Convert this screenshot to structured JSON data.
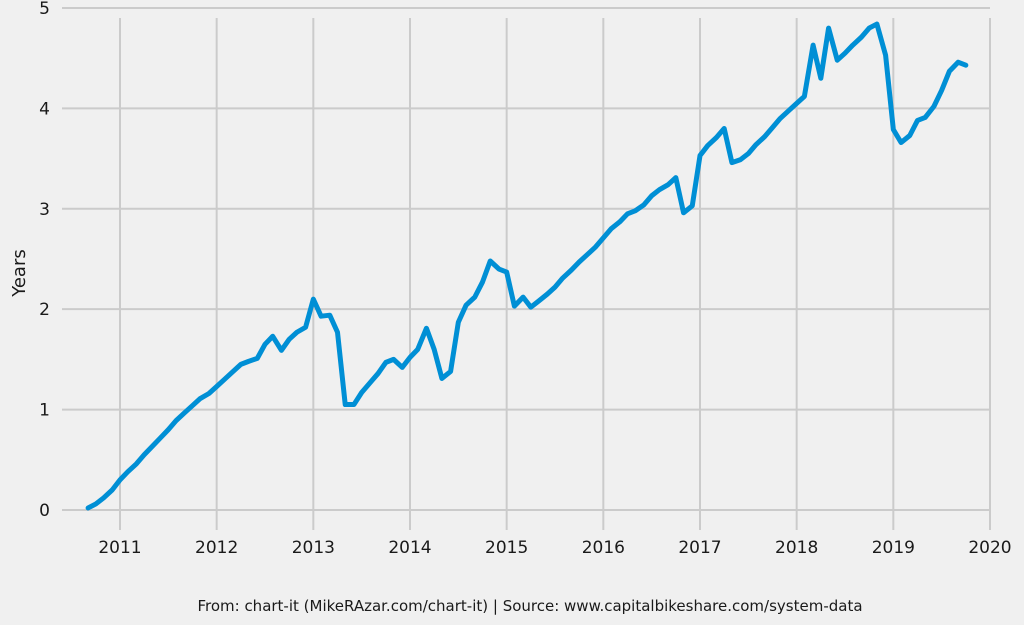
{
  "chart_data": {
    "type": "line",
    "title": "",
    "xlabel": "",
    "ylabel": "Years",
    "xlim": [
      2010.4,
      2020
    ],
    "ylim": [
      -0.1,
      5
    ],
    "grid": true,
    "x_ticks": [
      "2011",
      "2012",
      "2013",
      "2014",
      "2015",
      "2016",
      "2017",
      "2018",
      "2019",
      "2020"
    ],
    "y_ticks": [
      "0",
      "1",
      "2",
      "3",
      "4",
      "5"
    ],
    "series": [
      {
        "color": "#008fd5",
        "points": [
          [
            2010.67,
            0.02
          ],
          [
            2010.75,
            0.06
          ],
          [
            2010.83,
            0.12
          ],
          [
            2010.92,
            0.2
          ],
          [
            2011.0,
            0.3
          ],
          [
            2011.08,
            0.38
          ],
          [
            2011.17,
            0.46
          ],
          [
            2011.25,
            0.55
          ],
          [
            2011.33,
            0.63
          ],
          [
            2011.42,
            0.72
          ],
          [
            2011.5,
            0.8
          ],
          [
            2011.58,
            0.89
          ],
          [
            2011.67,
            0.97
          ],
          [
            2011.75,
            1.04
          ],
          [
            2011.83,
            1.11
          ],
          [
            2011.92,
            1.16
          ],
          [
            2012.0,
            1.23
          ],
          [
            2012.08,
            1.3
          ],
          [
            2012.17,
            1.38
          ],
          [
            2012.25,
            1.45
          ],
          [
            2012.33,
            1.48
          ],
          [
            2012.42,
            1.51
          ],
          [
            2012.5,
            1.65
          ],
          [
            2012.58,
            1.73
          ],
          [
            2012.67,
            1.59
          ],
          [
            2012.75,
            1.7
          ],
          [
            2012.83,
            1.77
          ],
          [
            2012.92,
            1.82
          ],
          [
            2013.0,
            2.1
          ],
          [
            2013.08,
            1.93
          ],
          [
            2013.17,
            1.94
          ],
          [
            2013.25,
            1.77
          ],
          [
            2013.33,
            1.05
          ],
          [
            2013.42,
            1.05
          ],
          [
            2013.5,
            1.17
          ],
          [
            2013.58,
            1.26
          ],
          [
            2013.67,
            1.36
          ],
          [
            2013.75,
            1.47
          ],
          [
            2013.83,
            1.5
          ],
          [
            2013.92,
            1.42
          ],
          [
            2014.0,
            1.52
          ],
          [
            2014.08,
            1.6
          ],
          [
            2014.17,
            1.81
          ],
          [
            2014.25,
            1.6
          ],
          [
            2014.33,
            1.31
          ],
          [
            2014.42,
            1.38
          ],
          [
            2014.5,
            1.87
          ],
          [
            2014.58,
            2.04
          ],
          [
            2014.67,
            2.12
          ],
          [
            2014.75,
            2.27
          ],
          [
            2014.83,
            2.48
          ],
          [
            2014.92,
            2.4
          ],
          [
            2015.0,
            2.37
          ],
          [
            2015.08,
            2.03
          ],
          [
            2015.17,
            2.12
          ],
          [
            2015.25,
            2.02
          ],
          [
            2015.33,
            2.08
          ],
          [
            2015.42,
            2.15
          ],
          [
            2015.5,
            2.22
          ],
          [
            2015.58,
            2.31
          ],
          [
            2015.67,
            2.39
          ],
          [
            2015.75,
            2.47
          ],
          [
            2015.83,
            2.54
          ],
          [
            2015.92,
            2.62
          ],
          [
            2016.0,
            2.71
          ],
          [
            2016.08,
            2.8
          ],
          [
            2016.17,
            2.87
          ],
          [
            2016.25,
            2.95
          ],
          [
            2016.33,
            2.98
          ],
          [
            2016.42,
            3.04
          ],
          [
            2016.5,
            3.13
          ],
          [
            2016.58,
            3.19
          ],
          [
            2016.67,
            3.24
          ],
          [
            2016.75,
            3.31
          ],
          [
            2016.83,
            2.96
          ],
          [
            2016.92,
            3.03
          ],
          [
            2017.0,
            3.53
          ],
          [
            2017.08,
            3.63
          ],
          [
            2017.17,
            3.71
          ],
          [
            2017.25,
            3.8
          ],
          [
            2017.33,
            3.46
          ],
          [
            2017.42,
            3.49
          ],
          [
            2017.5,
            3.55
          ],
          [
            2017.58,
            3.64
          ],
          [
            2017.67,
            3.72
          ],
          [
            2017.75,
            3.81
          ],
          [
            2017.83,
            3.9
          ],
          [
            2017.92,
            3.98
          ],
          [
            2018.0,
            4.05
          ],
          [
            2018.08,
            4.12
          ],
          [
            2018.17,
            4.63
          ],
          [
            2018.25,
            4.3
          ],
          [
            2018.33,
            4.8
          ],
          [
            2018.42,
            4.48
          ],
          [
            2018.5,
            4.55
          ],
          [
            2018.58,
            4.63
          ],
          [
            2018.67,
            4.71
          ],
          [
            2018.75,
            4.8
          ],
          [
            2018.83,
            4.84
          ],
          [
            2018.92,
            4.53
          ],
          [
            2019.0,
            3.79
          ],
          [
            2019.08,
            3.66
          ],
          [
            2019.17,
            3.73
          ],
          [
            2019.25,
            3.88
          ],
          [
            2019.33,
            3.91
          ],
          [
            2019.42,
            4.02
          ],
          [
            2019.5,
            4.18
          ],
          [
            2019.58,
            4.37
          ],
          [
            2019.67,
            4.46
          ],
          [
            2019.75,
            4.43
          ]
        ]
      }
    ]
  },
  "caption": "From: chart-it (MikeRAzar.com/chart-it) | Source: www.capitalbikeshare.com/system-data"
}
